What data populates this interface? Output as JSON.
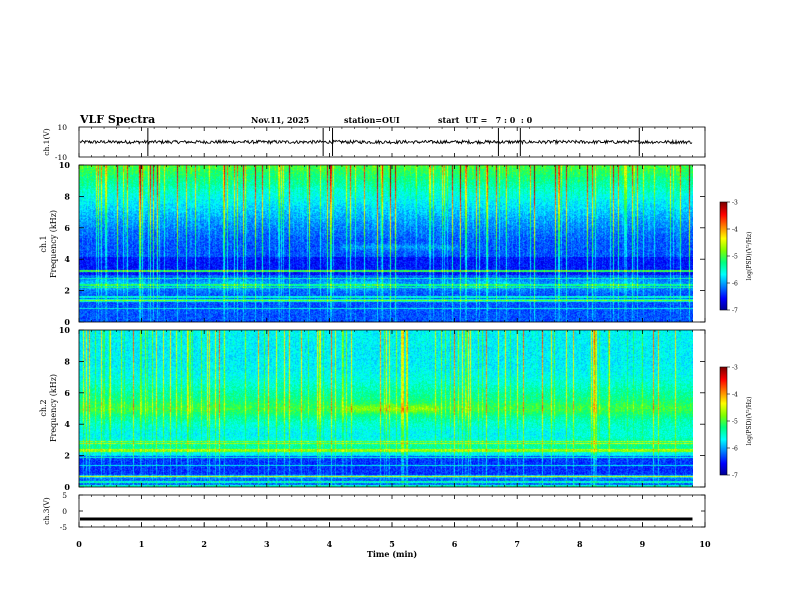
{
  "header": {
    "title": "VLF Spectra",
    "date": "Nov.11, 2025",
    "station": "station=OUI",
    "start": "start  UT =   7 : 0  : 0"
  },
  "colors": {
    "spectrogram": [
      "#00008f",
      "#0000ff",
      "#0080ff",
      "#00ffff",
      "#00ff80",
      "#80ff00",
      "#ffff00",
      "#ff8000",
      "#ff0000",
      "#800000"
    ],
    "line": "#000000"
  },
  "chart_data": [
    {
      "id": "ch1-waveform",
      "type": "line",
      "ylabel": "ch.1(V)",
      "ylim": [
        -10,
        10
      ],
      "yticks": [
        "10",
        "-10"
      ],
      "x": [
        0,
        10
      ],
      "series": [
        {
          "values": [
            0,
            0
          ]
        }
      ],
      "spikes_x": [
        1.1,
        3.9,
        4.05,
        6.7,
        7.05,
        8.95
      ]
    },
    {
      "id": "ch1-spectrogram",
      "type": "heatmap",
      "ylabel": "Frequency (kHz)",
      "channel": "ch.1",
      "ylim": [
        0,
        10
      ],
      "yticks": [
        "0",
        "2",
        "4",
        "6",
        "8",
        "10"
      ],
      "xlim": [
        0,
        10
      ],
      "data_end_x": 9.8,
      "colorbar": {
        "label": "log(PSD)(V²/Hz)",
        "range": [
          -7,
          -3
        ],
        "ticks": [
          "-3",
          "-4",
          "-5",
          "-6",
          "-7"
        ]
      },
      "emission_bands_khz": [
        2.4,
        4.8
      ],
      "lowest_level_band_khz": [
        3.0,
        4.2
      ]
    },
    {
      "id": "ch2-spectrogram",
      "type": "heatmap",
      "ylabel": "Frequency (kHz)",
      "channel": "ch.2",
      "ylim": [
        0,
        10
      ],
      "yticks": [
        "0",
        "2",
        "4",
        "6",
        "8",
        "10"
      ],
      "xlim": [
        0,
        10
      ],
      "data_end_x": 9.8,
      "colorbar": {
        "label": "log(PSD)(V²/Hz)",
        "range": [
          -7,
          -3
        ],
        "ticks": [
          "-3",
          "-4",
          "-5",
          "-6",
          "-7"
        ]
      },
      "emission_bands_khz": [
        2.6,
        5.0
      ],
      "lowest_level_band_khz": [
        0.8,
        2.0
      ]
    },
    {
      "id": "ch3-waveform",
      "type": "line",
      "ylabel": "ch.3(V)",
      "ylim": [
        -5,
        5
      ],
      "yticks": [
        "5",
        "0",
        "-5"
      ],
      "x": [
        0,
        10
      ],
      "series": [
        {
          "values": [
            -2.5,
            -2.5
          ]
        }
      ]
    }
  ],
  "xaxis": {
    "label": "Time (min)",
    "range": [
      0,
      10
    ],
    "ticks": [
      "0",
      "1",
      "2",
      "3",
      "4",
      "5",
      "6",
      "7",
      "8",
      "9",
      "10"
    ]
  }
}
